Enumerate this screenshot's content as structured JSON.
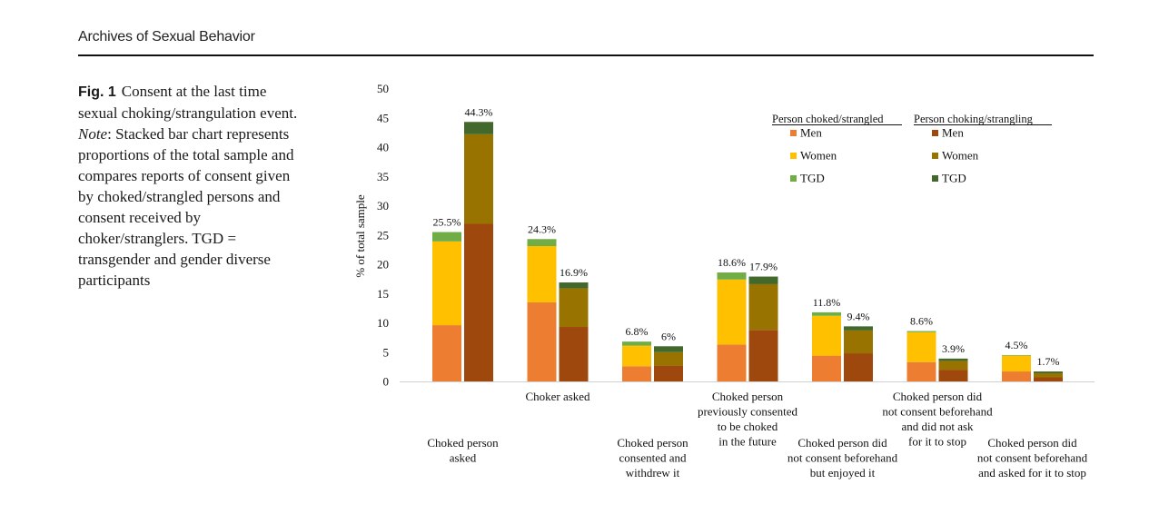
{
  "header": {
    "journal": "Archives of Sexual Behavior"
  },
  "caption": {
    "fig_label": "Fig. 1",
    "text_1": "Consent at the last time sexual choking/strangulation event.",
    "note_label": "Note",
    "text_2": ": Stacked bar chart represents proportions of the total sample and compares reports of consent given by choked/strangled persons and consent received by choker/stranglers. TGD = transgender and gender diverse participants"
  },
  "chart_data": {
    "type": "bar",
    "stacked": true,
    "ylabel": "% of total sample",
    "ylim": [
      0,
      50
    ],
    "yticks": [
      0,
      5,
      10,
      15,
      20,
      25,
      30,
      35,
      40,
      45,
      50
    ],
    "grid": false,
    "legend": {
      "placement": "top-right",
      "groups": [
        {
          "title": "Person choked/strangled",
          "items": [
            {
              "name": "Men",
              "color": "#ED7D31"
            },
            {
              "name": "Women",
              "color": "#FFC000"
            },
            {
              "name": "TGD",
              "color": "#70AD47"
            }
          ]
        },
        {
          "title": "Person choking/strangling",
          "items": [
            {
              "name": "Men",
              "color": "#9E480E"
            },
            {
              "name": "Women",
              "color": "#997300"
            },
            {
              "name": "TGD",
              "color": "#43682B"
            }
          ]
        }
      ]
    },
    "categories": [
      {
        "label": [
          "Choked person",
          "asked"
        ],
        "row": "low"
      },
      {
        "label": [
          "Choker asked"
        ],
        "row": "high"
      },
      {
        "label": [
          "Choked person",
          "consented and",
          "withdrew it"
        ],
        "row": "low"
      },
      {
        "label": [
          "Choked person",
          "previously consented",
          "to be choked",
          "in the future"
        ],
        "row": "high"
      },
      {
        "label": [
          "Choked person did",
          "not consent beforehand",
          "but enjoyed it"
        ],
        "row": "low"
      },
      {
        "label": [
          "Choked person did",
          "not consent beforehand",
          "and did not ask",
          "for it to stop"
        ],
        "row": "high"
      },
      {
        "label": [
          "Choked person did",
          "not consent beforehand",
          "and asked for it to stop"
        ],
        "row": "low"
      }
    ],
    "series": [
      {
        "name": "Person choked/strangled",
        "totals_label": [
          "25.5%",
          "24.3%",
          "6.8%",
          "18.6%",
          "11.8%",
          "8.6%",
          "4.5%"
        ],
        "stacks": [
          [
            9.6,
            14.3,
            1.6
          ],
          [
            13.5,
            9.6,
            1.2
          ],
          [
            2.6,
            3.5,
            0.7
          ],
          [
            6.3,
            11.1,
            1.2
          ],
          [
            4.4,
            6.8,
            0.6
          ],
          [
            3.3,
            5.1,
            0.2
          ],
          [
            1.7,
            2.7,
            0.1
          ]
        ]
      },
      {
        "name": "Person choking/strangling",
        "totals_label": [
          "44.3%",
          "16.9%",
          "6%",
          "17.9%",
          "9.4%",
          "3.9%",
          "1.7%"
        ],
        "stacks": [
          [
            26.9,
            15.3,
            2.1
          ],
          [
            9.3,
            6.6,
            1.0
          ],
          [
            2.7,
            2.3,
            1.0
          ],
          [
            8.8,
            7.8,
            1.3
          ],
          [
            4.8,
            3.9,
            0.7
          ],
          [
            2.0,
            1.5,
            0.4
          ],
          [
            0.7,
            0.7,
            0.3
          ]
        ]
      }
    ]
  }
}
